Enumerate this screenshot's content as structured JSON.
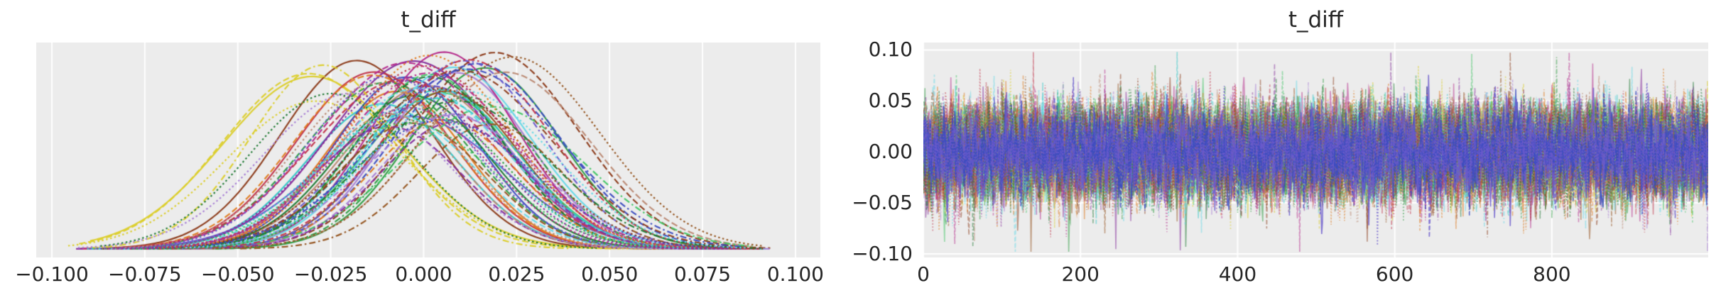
{
  "figure": {
    "background": "#ffffff",
    "axes_background": "#ececec",
    "grid_color": "#ffffff",
    "text_color": "#262626"
  },
  "chart_data": [
    {
      "type": "line",
      "subtype": "kde-density",
      "title": "t_diff",
      "xlabel": "",
      "ylabel": "",
      "legend": "none",
      "grid": "vertical",
      "xlim": [
        -0.1042,
        0.1067
      ],
      "xticks": [
        -0.1,
        -0.075,
        -0.05,
        -0.025,
        0.0,
        0.025,
        0.05,
        0.075,
        0.1
      ],
      "xtick_labels": [
        "−0.100",
        "−0.075",
        "−0.050",
        "−0.025",
        "0.000",
        "0.025",
        "0.050",
        "0.075",
        "0.100"
      ],
      "n_chains": 64,
      "center_mean": 0.0,
      "center_spread": 0.011,
      "center_clamp": [
        -0.027,
        0.02
      ],
      "sd_min": 0.019,
      "sd_max": 0.025,
      "peak_frac_min": 0.62,
      "peak_frac_max": 1.0,
      "support_min": -0.096,
      "support_max": 0.097,
      "outlier_centers": {
        "0": -0.03,
        "16": -0.031,
        "32": -0.027,
        "48": -0.029,
        "1": -0.018,
        "27": 0.022,
        "44": 0.018,
        "60": 0.024
      }
    },
    {
      "type": "line",
      "subtype": "mcmc-trace",
      "title": "t_diff",
      "xlabel": "",
      "ylabel": "",
      "legend": "none",
      "grid": "both",
      "xlim": [
        0,
        999
      ],
      "ylim": [
        -0.1035,
        0.1073
      ],
      "xticks": [
        0,
        200,
        400,
        600,
        800
      ],
      "xtick_labels": [
        "0",
        "200",
        "400",
        "600",
        "800"
      ],
      "yticks": [
        0.1,
        0.05,
        0.0,
        -0.05,
        -0.1
      ],
      "ytick_labels": [
        "0.10",
        "0.05",
        "0.00",
        "−0.05",
        "−0.10"
      ],
      "n_chains": 64,
      "n_draws": 1000,
      "sd": 0.022,
      "autocorr": 0.45,
      "spike_prob": 0.004,
      "clip": 0.098
    }
  ],
  "style": {
    "palette": [
      "#dccf2b",
      "#8c3b1a",
      "#e07b1f",
      "#2f9e44",
      "#44c767",
      "#32c8c8",
      "#3b4cc0",
      "#6a5acd",
      "#a97fd6",
      "#b52b8c",
      "#c2344a",
      "#bc8a74",
      "#95541f",
      "#1f7a33",
      "#66d9e8",
      "#862e9c"
    ],
    "blue_emphasis": [
      "#3b4cc0",
      "#6a5acd"
    ],
    "linestyles": [
      "solid",
      "dashed",
      "dashdot",
      "dotted"
    ],
    "seed": 42
  }
}
